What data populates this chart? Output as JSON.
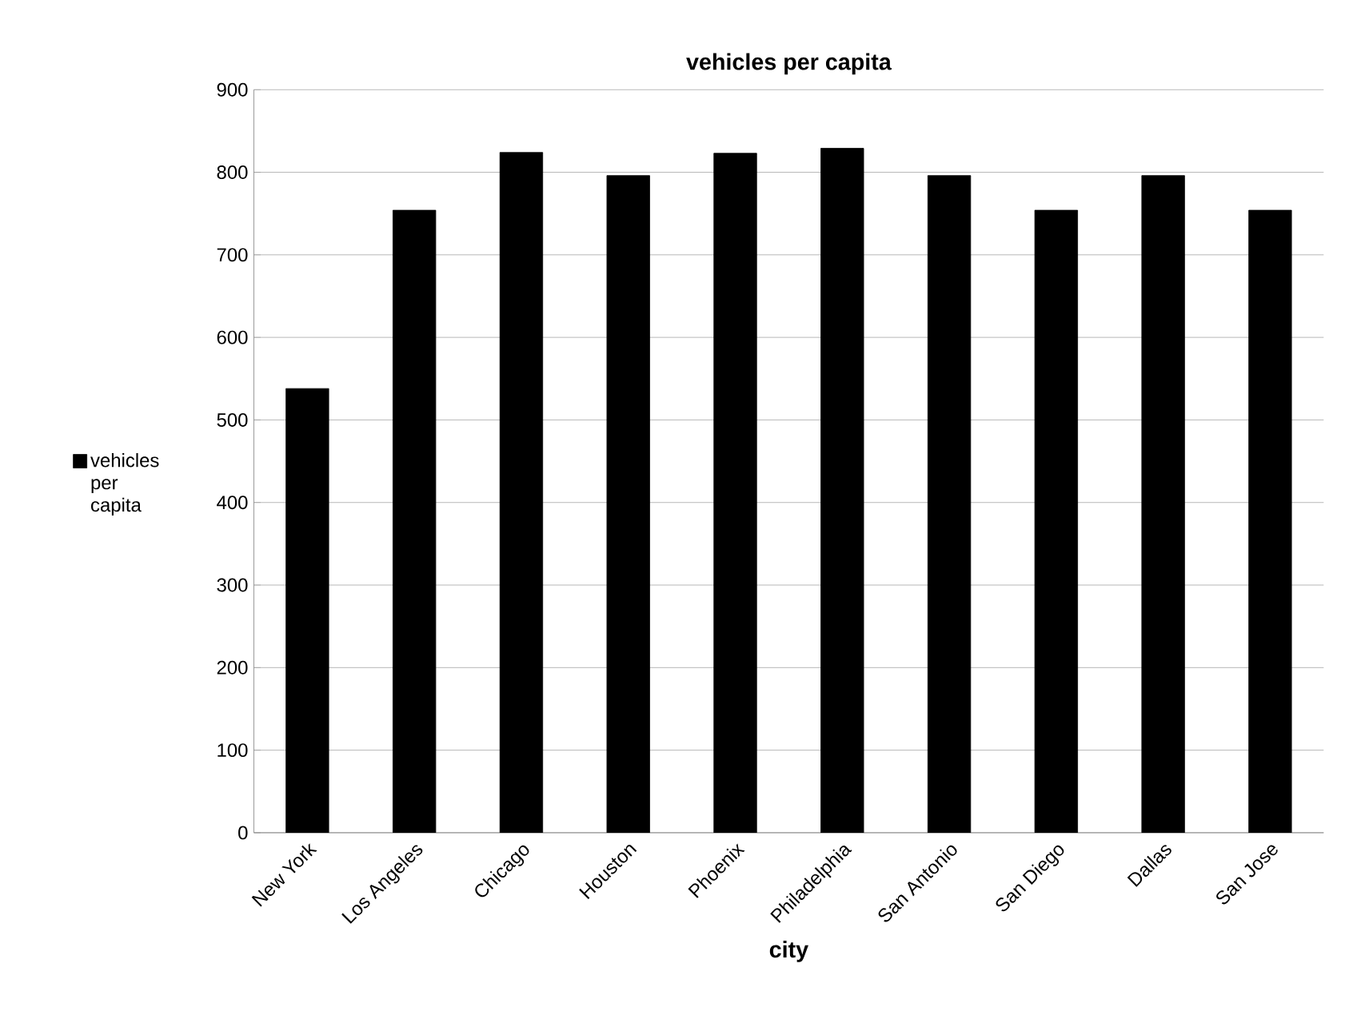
{
  "chart_data": {
    "type": "bar",
    "title": "vehicles per capita",
    "xlabel": "city",
    "categories": [
      "New York",
      "Los Angeles",
      "Chicago",
      "Houston",
      "Phoenix",
      "Philadelphia",
      "San Antonio",
      "San Diego",
      "Dallas",
      "San Jose"
    ],
    "series": [
      {
        "name": "vehicles per capita",
        "color": "#000000",
        "values": [
          538,
          754,
          824,
          796,
          823,
          829,
          796,
          754,
          796,
          754
        ]
      }
    ],
    "ylim": [
      0,
      900
    ],
    "yticks": [
      0,
      100,
      200,
      300,
      400,
      500,
      600,
      700,
      800,
      900
    ],
    "grid": "y",
    "legend": "left"
  }
}
